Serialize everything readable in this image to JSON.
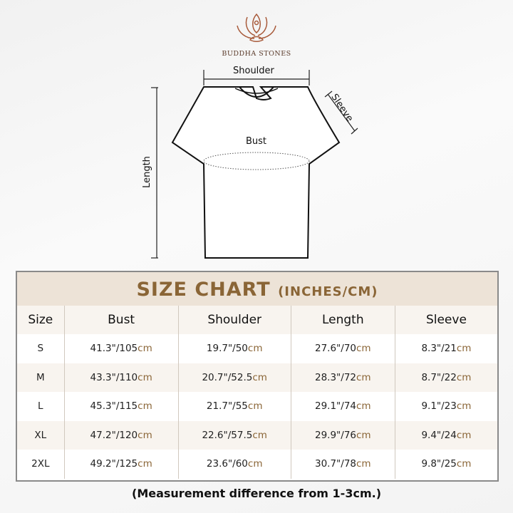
{
  "brand": {
    "name": "BUDDHA STONES"
  },
  "diagram": {
    "shoulder": "Shoulder",
    "sleeve": "Sleeve",
    "bust": "Bust",
    "length": "Length"
  },
  "chart": {
    "title": "SIZE CHART",
    "title_units": "(INCHES/CM)",
    "headers": [
      "Size",
      "Bust",
      "Shoulder",
      "Length",
      "Sleeve"
    ],
    "unit": "cm",
    "rows": [
      {
        "size": "S",
        "bust": "41.3\"/105",
        "shoulder": "19.7\"/50",
        "length": "27.6\"/70",
        "sleeve": "8.3\"/21"
      },
      {
        "size": "M",
        "bust": "43.3\"/110",
        "shoulder": "20.7\"/52.5",
        "length": "28.3\"/72",
        "sleeve": "8.7\"/22"
      },
      {
        "size": "L",
        "bust": "45.3\"/115",
        "shoulder": "21.7\"/55",
        "length": "29.1\"/74",
        "sleeve": "9.1\"/23"
      },
      {
        "size": "XL",
        "bust": "47.2\"/120",
        "shoulder": "22.6\"/57.5",
        "length": "29.9\"/76",
        "sleeve": "9.4\"/24"
      },
      {
        "size": "2XL",
        "bust": "49.2\"/125",
        "shoulder": "23.6\"/60",
        "length": "30.7\"/78",
        "sleeve": "9.8\"/25"
      }
    ]
  },
  "note": "(Measurement difference from 1-3cm.)",
  "colors": {
    "accent": "#8a6536",
    "title_bg": "#ede3d7"
  }
}
